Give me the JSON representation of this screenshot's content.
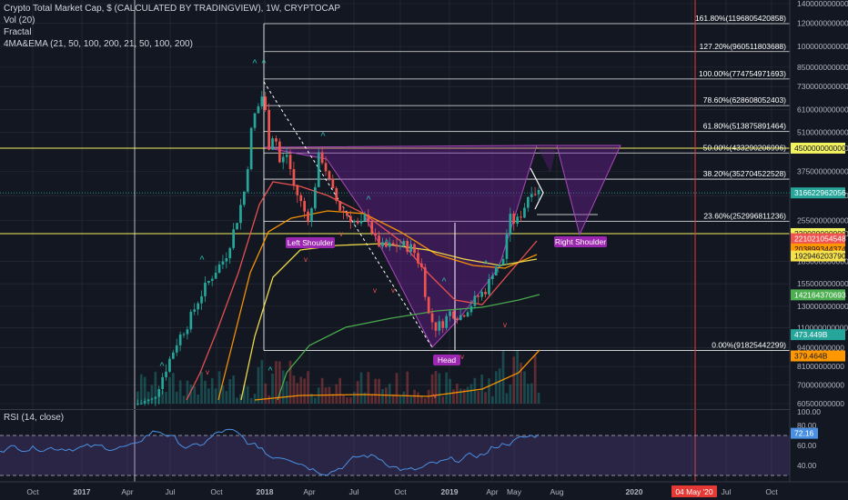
{
  "header": {
    "title": "Crypto Total Market Cap, $ (CALCULATED BY TRADINGVIEW), 1W, CRYPTOCAP",
    "indicators": [
      "Vol (20)",
      "Fractal",
      "4MA&EMA (21, 50, 100, 200, 21, 50, 100, 200)"
    ],
    "rsi_title": "RSI (14, close)"
  },
  "chart_data": [
    {
      "type": "candlestick",
      "title": "Crypto Total Market Cap, $ (CALCULATED BY TRADINGVIEW), 1W, CRYPTOCAP",
      "y_scale": "log",
      "ylim": [
        60500000000,
        1400000000000
      ],
      "y_ticks": [
        "1400000000000",
        "1200000000000",
        "1000000000000",
        "850000000000",
        "730000000000",
        "610000000000",
        "510000000000",
        "450000000000",
        "375000000000",
        "310000000000",
        "255000000000",
        "230000000000",
        "185000000000",
        "155000000000",
        "130000000000",
        "110000000000",
        "94000000000",
        "81000000000",
        "70000000000",
        "60500000000"
      ],
      "x_ticks": [
        "Oct",
        "2017",
        "Apr",
        "Jul",
        "Oct",
        "2018",
        "Apr",
        "Jul",
        "Oct",
        "2019",
        "Apr",
        "May",
        "Aug",
        "2020",
        "04 May '20",
        "Jul",
        "Oct"
      ],
      "fibonacci": [
        {
          "label": "161.80%(1196805420858)",
          "value": 1196805420858
        },
        {
          "label": "127.20%(960511803688)",
          "value": 960511803688
        },
        {
          "label": "100.00%(774754971693)",
          "value": 774754971693
        },
        {
          "label": "78.60%(628608052403)",
          "value": 628608052403
        },
        {
          "label": "61.80%(513875891464)",
          "value": 513875891464
        },
        {
          "label": "50.00%(433290206996)",
          "value": 433290206996
        },
        {
          "label": "38.20%(352704522528)",
          "value": 352704522528
        },
        {
          "label": "23.60%(252996811236)",
          "value": 252996811236
        },
        {
          "label": "0.00%(91825442299)",
          "value": 91825442299
        }
      ],
      "horizontal_levels": [
        {
          "value": 450000000000,
          "label": "450000000000",
          "color": "#f2f25f"
        },
        {
          "value": 230000000000,
          "label": "230000000000",
          "color": "#f2f25f"
        }
      ],
      "price_tags": [
        {
          "label": "316622962056",
          "value": 316622962056,
          "bg": "#26a69a",
          "fg": "#ffffff"
        },
        {
          "label": "221021054548",
          "value": 221021054548,
          "bg": "#ef5350",
          "fg": "#ffffff"
        },
        {
          "label": "203899344374",
          "value": 203899344374,
          "bg": "#ff9800",
          "fg": "#131722"
        },
        {
          "label": "192946203790",
          "value": 192946203790,
          "bg": "#f7e14b",
          "fg": "#131722"
        },
        {
          "label": "142164370693",
          "value": 142164370693,
          "bg": "#4caf50",
          "fg": "#ffffff"
        },
        {
          "label": "473.449B",
          "value": 104000000000,
          "bg": "#26a69a",
          "fg": "#ffffff"
        },
        {
          "label": "379.464B",
          "value": 88000000000,
          "bg": "#ff9800",
          "fg": "#131722"
        }
      ],
      "annotations": [
        "Left Shoulder",
        "Head",
        "Right Shoulder"
      ],
      "marker_date": "04 May '20"
    },
    {
      "type": "line",
      "title": "RSI (14, close)",
      "ylim": [
        20,
        100
      ],
      "y_ticks": [
        "80.00",
        "60.00",
        "40.00"
      ],
      "current_value": "72.16",
      "bands": [
        70,
        30
      ]
    }
  ],
  "colors": {
    "background": "#131722",
    "up": "#26a69a",
    "down": "#ef5350",
    "grid": "#2a2e39",
    "pattern": "#9c27b0",
    "marker_line": "#e53935"
  }
}
